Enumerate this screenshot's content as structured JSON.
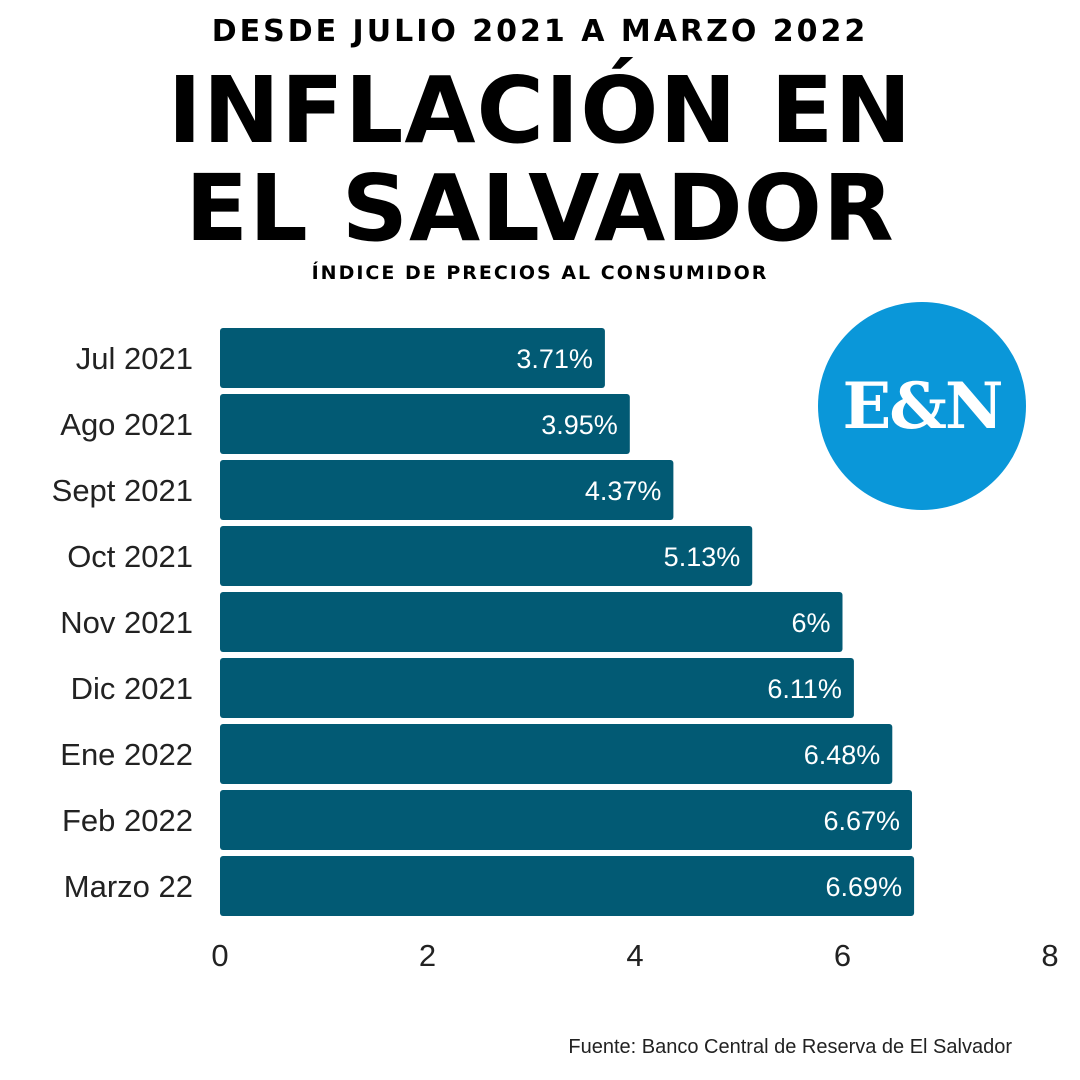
{
  "header": {
    "supertitle": "DESDE JULIO 2021 A MARZO 2022",
    "title_line1": "INFLACIÓN EN",
    "title_line2": "EL SALVADOR",
    "subtitle": "ÍNDICE DE PRECIOS AL CONSUMIDOR"
  },
  "logo": {
    "text": "E&N",
    "color": "#0a97d9"
  },
  "source": "Fuente: Banco Central de Reserva de El Salvador",
  "colors": {
    "bar": "#025a74",
    "label": "#ffffff",
    "axis_text": "#222222"
  },
  "chart_data": {
    "type": "bar",
    "orientation": "horizontal",
    "categories": [
      "Jul 2021",
      "Ago 2021",
      "Sept 2021",
      "Oct 2021",
      "Nov 2021",
      "Dic 2021",
      "Ene 2022",
      "Feb 2022",
      "Marzo 22"
    ],
    "values": [
      3.71,
      3.95,
      4.37,
      5.13,
      6,
      6.11,
      6.48,
      6.67,
      6.69
    ],
    "data_labels": [
      "3.71%",
      "3.95%",
      "4.37%",
      "5.13%",
      "6%",
      "6.11%",
      "6.48%",
      "6.67%",
      "6.69%"
    ],
    "xlim": [
      0,
      8
    ],
    "xticks": [
      0,
      2,
      4,
      6,
      8
    ],
    "title": "INFLACIÓN EN EL SALVADOR",
    "xlabel": "",
    "ylabel": "",
    "grid": false,
    "legend": "none"
  }
}
